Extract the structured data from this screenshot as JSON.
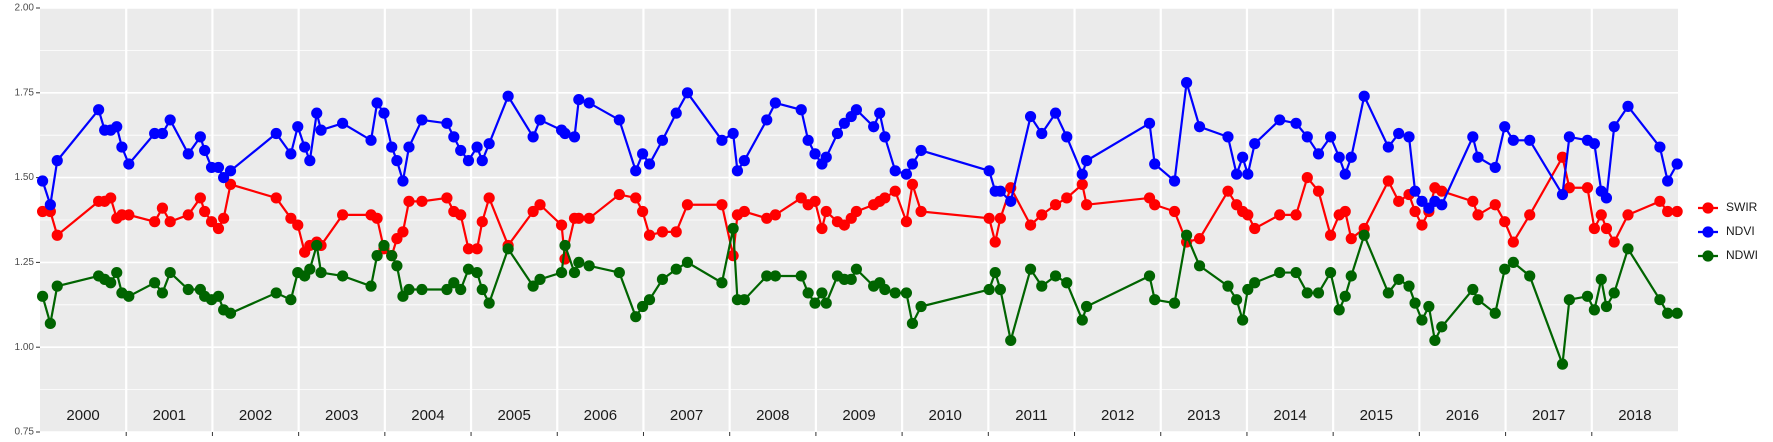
{
  "chart_data": {
    "type": "line",
    "x": [
      2000.03,
      2000.12,
      2000.2,
      2000.68,
      2000.75,
      2000.82,
      2000.89,
      2000.95,
      2001.03,
      2001.33,
      2001.42,
      2001.51,
      2001.72,
      2001.86,
      2001.91,
      2001.99,
      2002.07,
      2002.13,
      2002.21,
      2002.74,
      2002.91,
      2002.99,
      2003.07,
      2003.13,
      2003.21,
      2003.26,
      2003.51,
      2003.84,
      2003.91,
      2003.99,
      2004.08,
      2004.14,
      2004.21,
      2004.28,
      2004.43,
      2004.72,
      2004.8,
      2004.88,
      2004.97,
      2005.07,
      2005.13,
      2005.21,
      2005.43,
      2005.72,
      2005.8,
      2006.05,
      2006.09,
      2006.2,
      2006.25,
      2006.37,
      2006.72,
      2006.91,
      2006.99,
      2007.07,
      2007.22,
      2007.38,
      2007.51,
      2007.91,
      2008.04,
      2008.09,
      2008.17,
      2008.43,
      2008.53,
      2008.83,
      2008.91,
      2008.99,
      2009.07,
      2009.12,
      2009.25,
      2009.33,
      2009.41,
      2009.47,
      2009.67,
      2009.74,
      2009.8,
      2009.92,
      2010.05,
      2010.12,
      2010.22,
      2011.01,
      2011.08,
      2011.14,
      2011.26,
      2011.49,
      2011.62,
      2011.78,
      2011.91,
      2012.09,
      2012.14,
      2012.87,
      2012.93,
      2013.16,
      2013.3,
      2013.45,
      2013.78,
      2013.88,
      2013.95,
      2014.01,
      2014.09,
      2014.38,
      2014.57,
      2014.7,
      2014.83,
      2014.97,
      2015.07,
      2015.14,
      2015.21,
      2015.36,
      2015.64,
      2015.76,
      2015.88,
      2015.95,
      2016.03,
      2016.11,
      2016.18,
      2016.26,
      2016.62,
      2016.68,
      2016.88,
      2016.99,
      2017.09,
      2017.28,
      2017.66,
      2017.74,
      2017.95,
      2018.03,
      2018.11,
      2018.17,
      2018.26,
      2018.42,
      2018.79,
      2018.88,
      2018.99
    ],
    "series": [
      {
        "name": "SWIR",
        "color": "#ff0000",
        "values": [
          1.4,
          1.4,
          1.33,
          1.43,
          1.43,
          1.44,
          1.38,
          1.39,
          1.39,
          1.37,
          1.41,
          1.37,
          1.39,
          1.44,
          1.4,
          1.37,
          1.35,
          1.38,
          1.48,
          1.44,
          1.38,
          1.36,
          1.28,
          1.3,
          1.31,
          1.3,
          1.39,
          1.39,
          1.38,
          1.29,
          1.27,
          1.32,
          1.34,
          1.43,
          1.43,
          1.44,
          1.4,
          1.39,
          1.29,
          1.29,
          1.37,
          1.44,
          1.3,
          1.4,
          1.42,
          1.36,
          1.26,
          1.38,
          1.38,
          1.38,
          1.45,
          1.44,
          1.4,
          1.33,
          1.34,
          1.34,
          1.42,
          1.42,
          1.27,
          1.39,
          1.4,
          1.38,
          1.39,
          1.44,
          1.42,
          1.43,
          1.35,
          1.4,
          1.37,
          1.36,
          1.38,
          1.4,
          1.42,
          1.43,
          1.44,
          1.46,
          1.37,
          1.48,
          1.4,
          1.38,
          1.31,
          1.38,
          1.47,
          1.36,
          1.39,
          1.42,
          1.44,
          1.48,
          1.42,
          1.44,
          1.42,
          1.4,
          1.31,
          1.32,
          1.46,
          1.42,
          1.4,
          1.39,
          1.35,
          1.39,
          1.39,
          1.5,
          1.46,
          1.33,
          1.39,
          1.4,
          1.32,
          1.35,
          1.49,
          1.43,
          1.45,
          1.4,
          1.36,
          1.4,
          1.47,
          1.46,
          1.43,
          1.39,
          1.42,
          1.37,
          1.31,
          1.39,
          1.56,
          1.47,
          1.47,
          1.35,
          1.39,
          1.35,
          1.31,
          1.39,
          1.43,
          1.4,
          1.4
        ]
      },
      {
        "name": "NDVI",
        "color": "#0000ff",
        "values": [
          1.49,
          1.42,
          1.55,
          1.7,
          1.64,
          1.64,
          1.65,
          1.59,
          1.54,
          1.63,
          1.63,
          1.67,
          1.57,
          1.62,
          1.58,
          1.53,
          1.53,
          1.5,
          1.52,
          1.63,
          1.57,
          1.65,
          1.59,
          1.55,
          1.69,
          1.64,
          1.66,
          1.61,
          1.72,
          1.69,
          1.59,
          1.55,
          1.49,
          1.59,
          1.67,
          1.66,
          1.62,
          1.58,
          1.55,
          1.59,
          1.55,
          1.6,
          1.74,
          1.62,
          1.67,
          1.64,
          1.63,
          1.62,
          1.73,
          1.72,
          1.67,
          1.52,
          1.57,
          1.54,
          1.61,
          1.69,
          1.75,
          1.61,
          1.63,
          1.52,
          1.55,
          1.67,
          1.72,
          1.7,
          1.61,
          1.57,
          1.54,
          1.56,
          1.63,
          1.66,
          1.68,
          1.7,
          1.65,
          1.69,
          1.62,
          1.52,
          1.51,
          1.54,
          1.58,
          1.52,
          1.46,
          1.46,
          1.43,
          1.68,
          1.63,
          1.69,
          1.62,
          1.51,
          1.55,
          1.66,
          1.54,
          1.49,
          1.78,
          1.65,
          1.62,
          1.51,
          1.56,
          1.51,
          1.6,
          1.67,
          1.66,
          1.62,
          1.57,
          1.62,
          1.56,
          1.51,
          1.56,
          1.74,
          1.59,
          1.63,
          1.62,
          1.46,
          1.43,
          1.41,
          1.43,
          1.42,
          1.62,
          1.56,
          1.53,
          1.65,
          1.61,
          1.61,
          1.45,
          1.62,
          1.61,
          1.6,
          1.46,
          1.44,
          1.65,
          1.71,
          1.59,
          1.49,
          1.54
        ]
      },
      {
        "name": "NDWI",
        "color": "#006400",
        "values": [
          1.15,
          1.07,
          1.18,
          1.21,
          1.2,
          1.19,
          1.22,
          1.16,
          1.15,
          1.19,
          1.16,
          1.22,
          1.17,
          1.17,
          1.15,
          1.14,
          1.15,
          1.11,
          1.1,
          1.16,
          1.14,
          1.22,
          1.21,
          1.23,
          1.3,
          1.22,
          1.21,
          1.18,
          1.27,
          1.3,
          1.27,
          1.24,
          1.15,
          1.17,
          1.17,
          1.17,
          1.19,
          1.17,
          1.23,
          1.22,
          1.17,
          1.13,
          1.29,
          1.18,
          1.2,
          1.22,
          1.3,
          1.22,
          1.25,
          1.24,
          1.22,
          1.09,
          1.12,
          1.14,
          1.2,
          1.23,
          1.25,
          1.19,
          1.35,
          1.14,
          1.14,
          1.21,
          1.21,
          1.21,
          1.16,
          1.13,
          1.16,
          1.13,
          1.21,
          1.2,
          1.2,
          1.23,
          1.18,
          1.19,
          1.17,
          1.16,
          1.16,
          1.07,
          1.12,
          1.17,
          1.22,
          1.17,
          1.02,
          1.23,
          1.18,
          1.21,
          1.19,
          1.08,
          1.12,
          1.21,
          1.14,
          1.13,
          1.33,
          1.24,
          1.18,
          1.14,
          1.08,
          1.17,
          1.19,
          1.22,
          1.22,
          1.16,
          1.16,
          1.22,
          1.11,
          1.15,
          1.21,
          1.33,
          1.16,
          1.2,
          1.18,
          1.13,
          1.08,
          1.12,
          1.02,
          1.06,
          1.17,
          1.14,
          1.1,
          1.23,
          1.25,
          1.21,
          0.95,
          1.14,
          1.15,
          1.11,
          1.2,
          1.12,
          1.16,
          1.29,
          1.14,
          1.1,
          1.1
        ]
      }
    ],
    "year_labels": [
      "2000",
      "2001",
      "2002",
      "2003",
      "2004",
      "2005",
      "2006",
      "2007",
      "2008",
      "2009",
      "2010",
      "2011",
      "2012",
      "2013",
      "2014",
      "2015",
      "2016",
      "2017",
      "2018"
    ],
    "xlim": [
      2000,
      2019
    ],
    "xticks": [
      2001,
      2002,
      2003,
      2004,
      2005,
      2006,
      2007,
      2008,
      2009,
      2010,
      2011,
      2012,
      2013,
      2014,
      2015,
      2016,
      2017,
      2018
    ],
    "ylim": [
      0.75,
      2.0
    ],
    "yticks": [
      {
        "value": 0.75,
        "label": "0.75"
      },
      {
        "value": 1.0,
        "label": "1.00"
      },
      {
        "value": 1.25,
        "label": "1.25"
      },
      {
        "value": 1.5,
        "label": "1.50"
      },
      {
        "value": 1.75,
        "label": "1.75"
      },
      {
        "value": 2.0,
        "label": "2.00"
      }
    ],
    "grid": true,
    "legend": "right"
  }
}
